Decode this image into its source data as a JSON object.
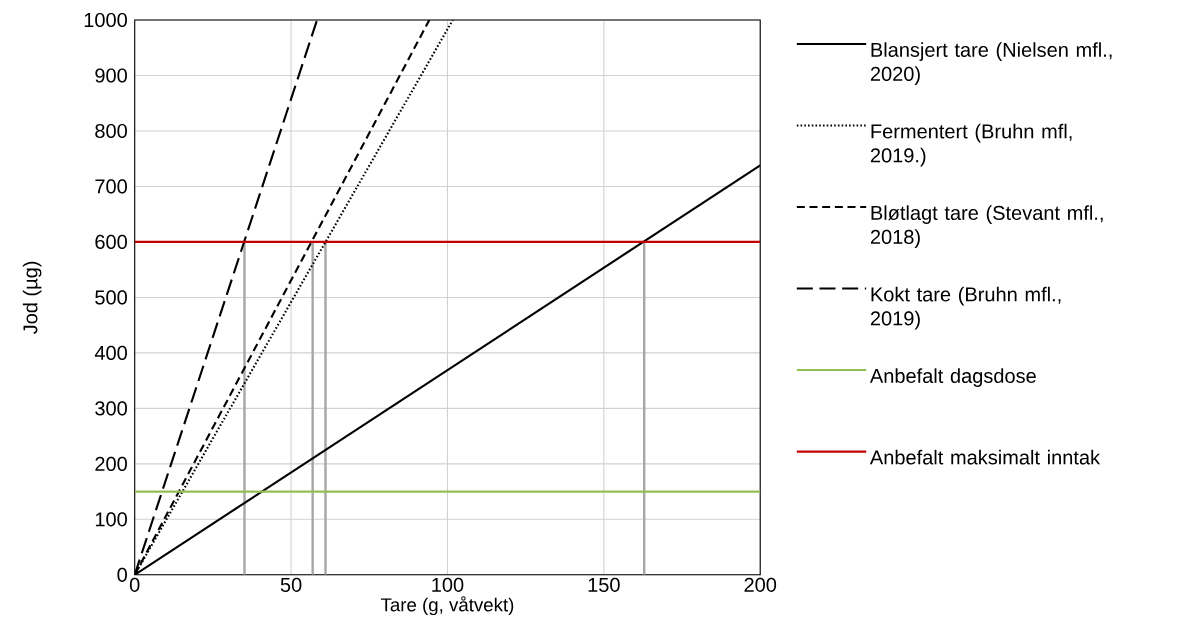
{
  "chart_data": {
    "type": "line",
    "xlabel": "Tare (g, våtvekt)",
    "ylabel": "Jod (µg)",
    "xlim": [
      0,
      200
    ],
    "ylim": [
      0,
      1000
    ],
    "xticks": [
      0,
      50,
      100,
      150,
      200
    ],
    "yticks": [
      0,
      100,
      200,
      300,
      400,
      500,
      600,
      700,
      800,
      900,
      1000
    ],
    "grid": true,
    "legend": "right",
    "marker": "none",
    "series": [
      {
        "x": [
          35.1,
          35.1
        ],
        "values": [
          0,
          600
        ],
        "color": "#a6a6a6",
        "line_style": "solid"
      },
      {
        "x": [
          56.9,
          56.9
        ],
        "values": [
          0,
          600
        ],
        "color": "#a6a6a6",
        "line_style": "solid"
      },
      {
        "x": [
          61.0,
          61.0
        ],
        "values": [
          0,
          600
        ],
        "color": "#a6a6a6",
        "line_style": "solid"
      },
      {
        "x": [
          162.9,
          162.9
        ],
        "values": [
          0,
          600
        ],
        "color": "#a6a6a6",
        "line_style": "solid"
      },
      {
        "name": "Blansjert tare (Nielsen mfl., 2020)",
        "x": [
          0,
          200
        ],
        "values": [
          0,
          738
        ],
        "color": "#000000",
        "line_style": "solid"
      },
      {
        "name": "Fermentert (Bruhn mfl, 2019.)",
        "x": [
          0,
          101.7
        ],
        "values": [
          0,
          1000
        ],
        "color": "#000000",
        "line_style": "dotted"
      },
      {
        "name": "Bløtlagt tare (Stevant mfl., 2018)",
        "x": [
          0,
          94.2
        ],
        "values": [
          0,
          1000
        ],
        "color": "#000000",
        "line_style": "dashed"
      },
      {
        "name": "Kokt tare (Bruhn mfl., 2019)",
        "x": [
          0,
          58.3
        ],
        "values": [
          0,
          1000
        ],
        "color": "#000000",
        "line_style": "longdashed"
      },
      {
        "name": "Anbefalt dagsdose",
        "x": [
          0,
          200
        ],
        "values": [
          150,
          150
        ],
        "color": "#92c050",
        "line_style": "solid"
      },
      {
        "name": "Anbefalt maksimalt inntak",
        "x": [
          0,
          200
        ],
        "values": [
          600,
          600
        ],
        "color": "#c00000",
        "line_style": "solid"
      }
    ]
  }
}
